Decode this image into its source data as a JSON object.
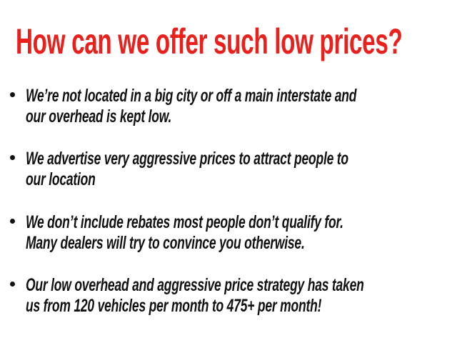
{
  "title": "How can we offer such low prices?",
  "colors": {
    "title": "#e8211d",
    "text": "#111111"
  },
  "bullets": [
    {
      "lines": [
        "We’re not located in a big city or off a main interstate and",
        "our overhead is kept low."
      ]
    },
    {
      "lines": [
        "We advertise very aggressive prices to attract people to",
        "our location"
      ]
    },
    {
      "lines": [
        "We don’t include rebates most people don’t qualify for.",
        "Many dealers will try to convince you otherwise."
      ]
    },
    {
      "lines": [
        "Our low overhead and aggressive price strategy has taken",
        "us from 120 vehicles per month to 475+ per month!"
      ]
    }
  ]
}
